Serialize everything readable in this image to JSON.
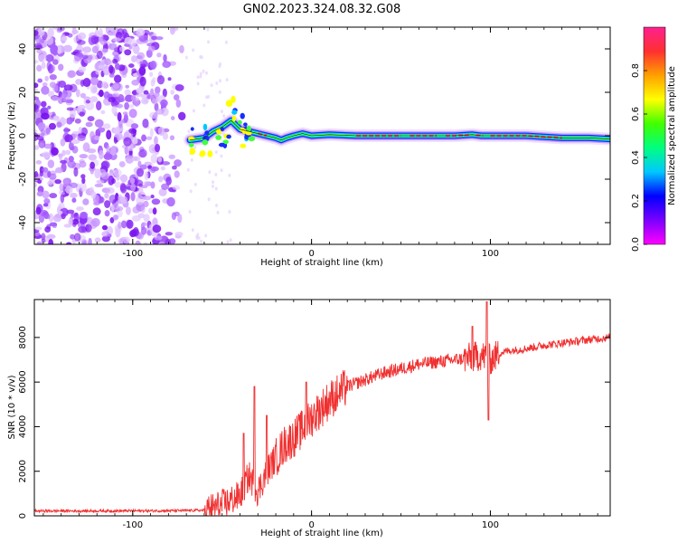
{
  "figure": {
    "title": "GN02.2023.324.08.32.G08"
  },
  "chart_data": [
    {
      "type": "heatmap",
      "name": "spectrogram",
      "xlabel": "Height of straight line (km)",
      "ylabel": "Frequency (Hz)",
      "xlim": [
        -155,
        167
      ],
      "ylim": [
        -50,
        50
      ],
      "xticks": [
        -100,
        0,
        100
      ],
      "yticks": [
        -40,
        -20,
        0,
        20,
        40
      ],
      "colorbar": {
        "label": "Normalized spectral amplitude",
        "range": [
          0,
          1
        ],
        "ticks": [
          0.0,
          0.2,
          0.4,
          0.6,
          0.8
        ],
        "colors": [
          "#ff00ff",
          "#7a00ff",
          "#0000ff",
          "#00c8ff",
          "#00ff80",
          "#40ff00",
          "#ffff00",
          "#ffa000",
          "#ff3030",
          "#ff2090"
        ]
      },
      "ridge_line": {
        "x": [
          -68,
          -60,
          -55,
          -50,
          -45,
          -40,
          -35,
          -30,
          -25,
          -20,
          -17,
          -14,
          -10,
          -5,
          0,
          10,
          25,
          40,
          60,
          80,
          90,
          95,
          100,
          120,
          140,
          155,
          167
        ],
        "y": [
          -2,
          -1,
          2,
          4,
          7,
          3,
          2,
          1,
          0,
          -1,
          -2,
          -1,
          0,
          1,
          0,
          0.5,
          0,
          0,
          0,
          0,
          0.5,
          0,
          0,
          0,
          -1,
          -1,
          -1.5
        ]
      },
      "noise_region": {
        "x": [
          -155,
          -70
        ],
        "y": [
          -50,
          50
        ]
      }
    },
    {
      "type": "line",
      "name": "snr",
      "xlabel": "Height of straight line (km)",
      "ylabel": "SNR (10 * v/v)",
      "xlim": [
        -155,
        167
      ],
      "ylim": [
        0,
        9700
      ],
      "xticks": [
        -100,
        0,
        100
      ],
      "yticks": [
        0,
        2000,
        4000,
        6000,
        8000
      ],
      "color": "#f03030",
      "trend": {
        "x": [
          -155,
          -120,
          -80,
          -60,
          -50,
          -40,
          -35,
          -30,
          -25,
          -20,
          -15,
          -10,
          -5,
          0,
          5,
          10,
          20,
          30,
          40,
          50,
          60,
          70,
          80,
          90,
          95,
          100,
          105,
          110,
          120,
          130,
          140,
          150,
          160,
          167
        ],
        "y": [
          220,
          220,
          230,
          250,
          500,
          900,
          1800,
          1100,
          2000,
          2600,
          3200,
          3500,
          3900,
          4400,
          4800,
          5200,
          5800,
          6100,
          6400,
          6600,
          6800,
          6900,
          7000,
          7100,
          7200,
          7000,
          7300,
          7400,
          7500,
          7650,
          7750,
          7850,
          7950,
          8000
        ]
      },
      "spikes": [
        {
          "x": -38,
          "y": 3700
        },
        {
          "x": -32,
          "y": 5800
        },
        {
          "x": -25,
          "y": 4500
        },
        {
          "x": -3,
          "y": 6000
        },
        {
          "x": 15,
          "y": 5400
        },
        {
          "x": 90,
          "y": 8500
        },
        {
          "x": 98,
          "y": 9600
        },
        {
          "x": 99,
          "y": 4300
        }
      ]
    }
  ]
}
